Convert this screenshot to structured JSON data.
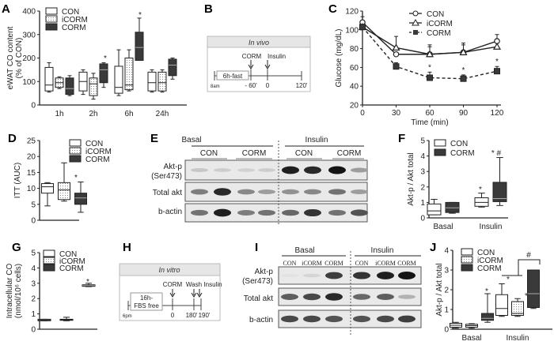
{
  "colors": {
    "con": "#ffffff",
    "icorm": "#e8e8e8",
    "corm": "#3a3a3a",
    "axis": "#222222"
  },
  "legend": {
    "con": "CON",
    "icorm": "iCORM",
    "corm": "CORM"
  },
  "panels": {
    "A": {
      "label": "A"
    },
    "B": {
      "label": "B",
      "title": "In vivo",
      "fast": "6h-fast",
      "corm": "CORM",
      "insulin": "Insulin",
      "start": "8am",
      "t1": "- 60'",
      "t2": "0",
      "t3": "120'"
    },
    "C": {
      "label": "C"
    },
    "D": {
      "label": "D"
    },
    "E": {
      "label": "E",
      "basal": "Basal",
      "insulin": "Insulin",
      "con": "CON",
      "corm": "CORM",
      "rows": [
        "Akt-p",
        "(Ser473)",
        "Total akt",
        "b-actin"
      ]
    },
    "F": {
      "label": "F"
    },
    "G": {
      "label": "G"
    },
    "H": {
      "label": "H",
      "title": "In vitro",
      "fbs1": "16h-",
      "fbs2": "FBS free",
      "corm": "CORM",
      "wash": "Wash",
      "insulin": "Insulin",
      "start": "6pm",
      "t1": "0",
      "t2": "180'",
      "t3": "190'"
    },
    "I": {
      "label": "I",
      "basal": "Basal",
      "insulin": "Insulin",
      "lanes": [
        "CON",
        "iCORM",
        "CORM",
        "CON",
        "iCORM",
        "CORM"
      ],
      "rows": [
        "Akt-p",
        "(Ser473)",
        "Total akt",
        "b-actin"
      ]
    },
    "J": {
      "label": "J"
    }
  },
  "chart_data": [
    {
      "panel": "A",
      "type": "box",
      "ylabel": "eWAT CO content (% of CON)",
      "ylim": [
        0,
        400
      ],
      "yticks": [
        0,
        100,
        200,
        300,
        400
      ],
      "categories": [
        "1h",
        "2h",
        "6h",
        "24h"
      ],
      "series": [
        {
          "name": "CON",
          "boxes": [
            [
              55,
              60,
              85,
              160,
              180
            ],
            [
              45,
              60,
              100,
              140,
              150
            ],
            [
              40,
              50,
              75,
              165,
              235
            ],
            [
              55,
              60,
              95,
              140,
              150
            ]
          ]
        },
        {
          "name": "iCORM",
          "boxes": [
            [
              70,
              75,
              95,
              115,
              120
            ],
            [
              25,
              40,
              90,
              115,
              135
            ],
            [
              60,
              65,
              85,
              200,
              235
            ],
            [
              55,
              60,
              95,
              140,
              150
            ]
          ]
        },
        {
          "name": "CORM",
          "boxes": [
            [
              40,
              45,
              70,
              115,
              125
            ],
            [
              75,
              95,
              150,
              175,
              180
            ],
            [
              190,
              190,
              245,
              310,
              370
            ],
            [
              110,
              125,
              170,
              195,
              200
            ]
          ]
        }
      ],
      "significance": [
        {
          "category": "2h",
          "series": "CORM",
          "mark": "*"
        },
        {
          "category": "6h",
          "series": "CORM",
          "mark": "*"
        }
      ]
    },
    {
      "panel": "C",
      "type": "line",
      "xlabel": "Time (min)",
      "ylabel": "Glucose (mg/dL)",
      "x": [
        0,
        30,
        60,
        90,
        120
      ],
      "xlim": [
        0,
        120
      ],
      "ylim": [
        20,
        120
      ],
      "yticks": [
        20,
        40,
        60,
        80,
        100,
        120
      ],
      "series": [
        {
          "name": "CON",
          "values": [
            108,
            74,
            74,
            76,
            88
          ],
          "errors": [
            6,
            0,
            10,
            10,
            7
          ],
          "marker": "circle",
          "dash": false
        },
        {
          "name": "iCORM",
          "values": [
            103,
            81,
            74,
            76,
            82
          ],
          "errors": [
            0,
            12,
            8,
            8,
            0
          ],
          "marker": "triangle",
          "dash": false
        },
        {
          "name": "CORM",
          "values": [
            103,
            61,
            49,
            48,
            56
          ],
          "errors": [
            0,
            4,
            6,
            4,
            5
          ],
          "marker": "square",
          "dash": true
        }
      ],
      "significance": [
        {
          "x": 60,
          "mark": "*"
        },
        {
          "x": 90,
          "mark": "*"
        },
        {
          "x": 120,
          "mark": "*"
        }
      ]
    },
    {
      "panel": "D",
      "type": "box",
      "ylabel": "ITT (AUC)",
      "ylim": [
        0,
        25
      ],
      "yticks": [
        0,
        5,
        10,
        15,
        20,
        25
      ],
      "categories": [
        ""
      ],
      "series": [
        {
          "name": "CON",
          "boxes": [
            [
              4.5,
              8.5,
              10.5,
              11.5,
              11.8
            ]
          ]
        },
        {
          "name": "iCORM",
          "boxes": [
            [
              6,
              6.5,
              9.5,
              11.8,
              18
            ]
          ]
        },
        {
          "name": "CORM",
          "boxes": [
            [
              2.5,
              5,
              7,
              8.5,
              12
            ]
          ]
        }
      ],
      "significance": [
        {
          "series": "CORM",
          "mark": "*"
        }
      ]
    },
    {
      "panel": "F",
      "type": "box",
      "ylabel": "Akt-p / Akt total",
      "ylim": [
        0,
        5
      ],
      "yticks": [
        0,
        1,
        2,
        3,
        4,
        5
      ],
      "categories": [
        "Basal",
        "Insulin"
      ],
      "series": [
        {
          "name": "CON",
          "boxes": [
            [
              0.2,
              0.2,
              0.45,
              0.9,
              1.2
            ],
            [
              0.7,
              0.75,
              1.0,
              1.3,
              1.6
            ]
          ]
        },
        {
          "name": "CORM",
          "boxes": [
            [
              0.3,
              0.35,
              0.65,
              1.0,
              1.0
            ],
            [
              0.8,
              1.05,
              1.25,
              2.3,
              3.9
            ]
          ]
        }
      ],
      "significance": [
        {
          "category": "Insulin",
          "series": "CON",
          "mark": "*"
        },
        {
          "category": "Insulin",
          "series": "CORM",
          "mark": "* #"
        }
      ]
    },
    {
      "panel": "G",
      "type": "box",
      "ylabel": "Intracellular CO (nmol/10^6 cells)",
      "ylim": [
        0,
        5
      ],
      "yticks": [
        0,
        1,
        2,
        3,
        4,
        5
      ],
      "categories": [
        ""
      ],
      "series": [
        {
          "name": "CON",
          "boxes": [
            [
              0.55,
              0.55,
              0.6,
              0.65,
              0.65
            ]
          ]
        },
        {
          "name": "iCORM",
          "boxes": [
            [
              0.55,
              0.58,
              0.62,
              0.65,
              0.78
            ]
          ]
        },
        {
          "name": "CORM",
          "boxes": [
            [
              2.78,
              2.8,
              2.85,
              2.9,
              3.0
            ]
          ]
        }
      ],
      "significance": [
        {
          "series": "CORM",
          "mark": "*"
        }
      ]
    },
    {
      "panel": "J",
      "type": "box",
      "ylabel": "Akt-p / Akt total",
      "ylim": [
        0,
        4
      ],
      "yticks": [
        0,
        1,
        2,
        3,
        4
      ],
      "categories": [
        "Basal",
        "Insulin"
      ],
      "series": [
        {
          "name": "CON",
          "boxes": [
            [
              0.05,
              0.1,
              0.2,
              0.3,
              0.35
            ],
            [
              0.65,
              0.7,
              1.05,
              1.75,
              2.3
            ]
          ]
        },
        {
          "name": "iCORM",
          "boxes": [
            [
              0.05,
              0.1,
              0.18,
              0.25,
              0.28
            ],
            [
              0.65,
              0.7,
              0.8,
              1.4,
              1.55
            ]
          ]
        },
        {
          "name": "CORM",
          "boxes": [
            [
              0.35,
              0.45,
              0.55,
              0.8,
              1.8
            ],
            [
              1.05,
              1.1,
              1.8,
              3.0,
              3.0
            ]
          ]
        }
      ],
      "significance": [
        {
          "category": "Basal",
          "series": "CORM",
          "mark": "*"
        },
        {
          "category": "Insulin",
          "series": "CON",
          "mark": "*"
        },
        {
          "category": "Insulin",
          "series": "iCORM",
          "mark": "*"
        },
        {
          "category": "Insulin-bracket",
          "mark": "#"
        }
      ]
    }
  ]
}
